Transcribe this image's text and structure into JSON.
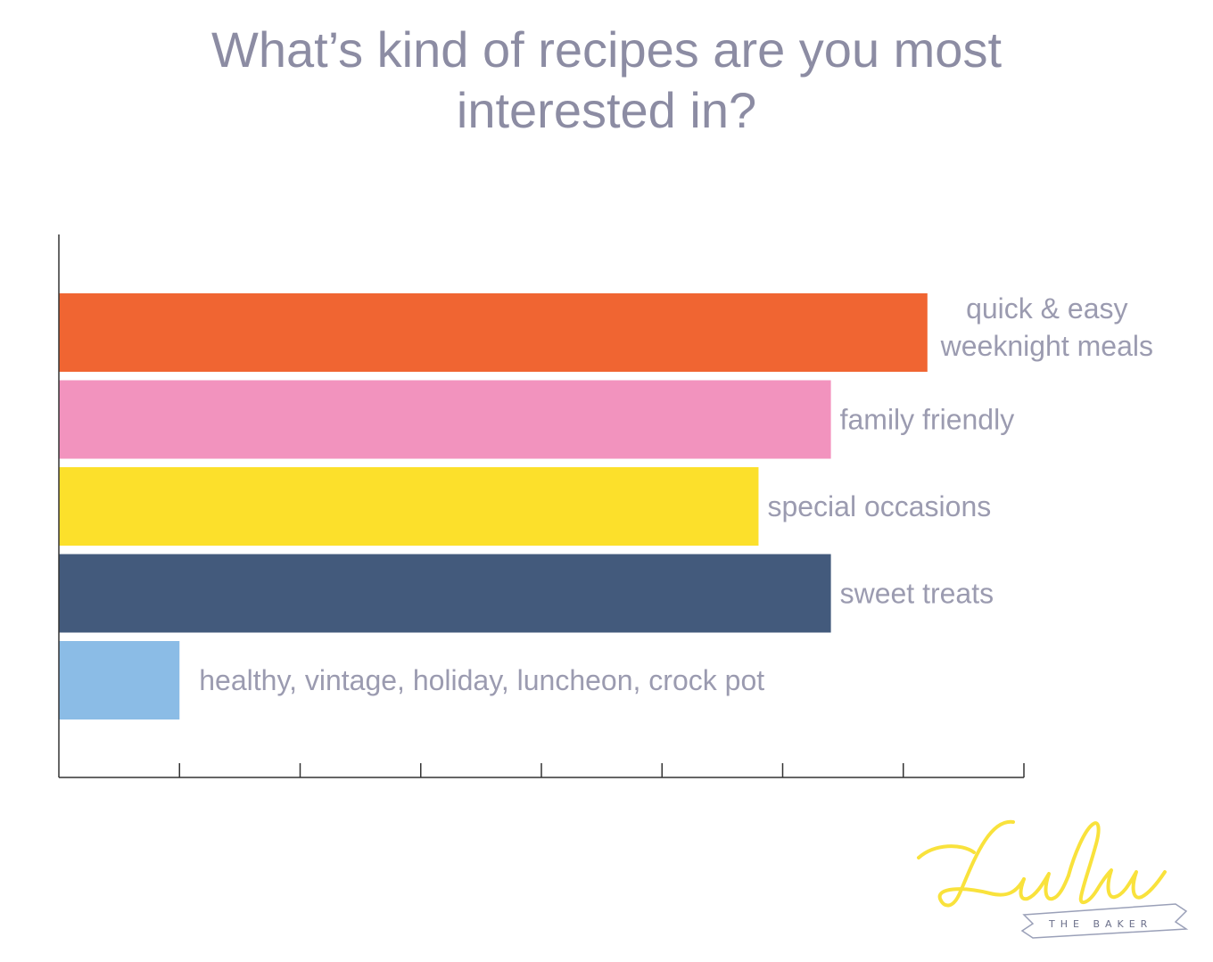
{
  "title": "What’s kind of recipes are you most interested in?",
  "chart_data": {
    "type": "bar",
    "orientation": "horizontal",
    "title": "What’s kind of recipes are you most interested in?",
    "categories": [
      "quick & easy weeknight meals",
      "family friendly",
      "special occasions",
      "sweet treats",
      "healthy, vintage, holiday, luncheon, crock pot"
    ],
    "label_lines": [
      [
        "quick & easy",
        "weeknight meals"
      ],
      [
        "family friendly"
      ],
      [
        "special occasions"
      ],
      [
        "sweet treats"
      ],
      [
        "healthy, vintage, holiday, luncheon, crock pot"
      ]
    ],
    "values": [
      7.2,
      6.4,
      5.8,
      6.4,
      1.0
    ],
    "colors": [
      "#f06532",
      "#f293be",
      "#fce02b",
      "#435a7c",
      "#8bbce6"
    ],
    "xlim": [
      0,
      8
    ],
    "x_ticks": 8,
    "xlabel": "",
    "ylabel": "",
    "grid": false,
    "legend": "none",
    "text_color": "#9b9bb0",
    "axis_color": "#333333"
  },
  "logo": {
    "script": "Lulu",
    "band": "THE BAKER",
    "color": "#f9e23c",
    "band_color": "#6b6f8a"
  }
}
